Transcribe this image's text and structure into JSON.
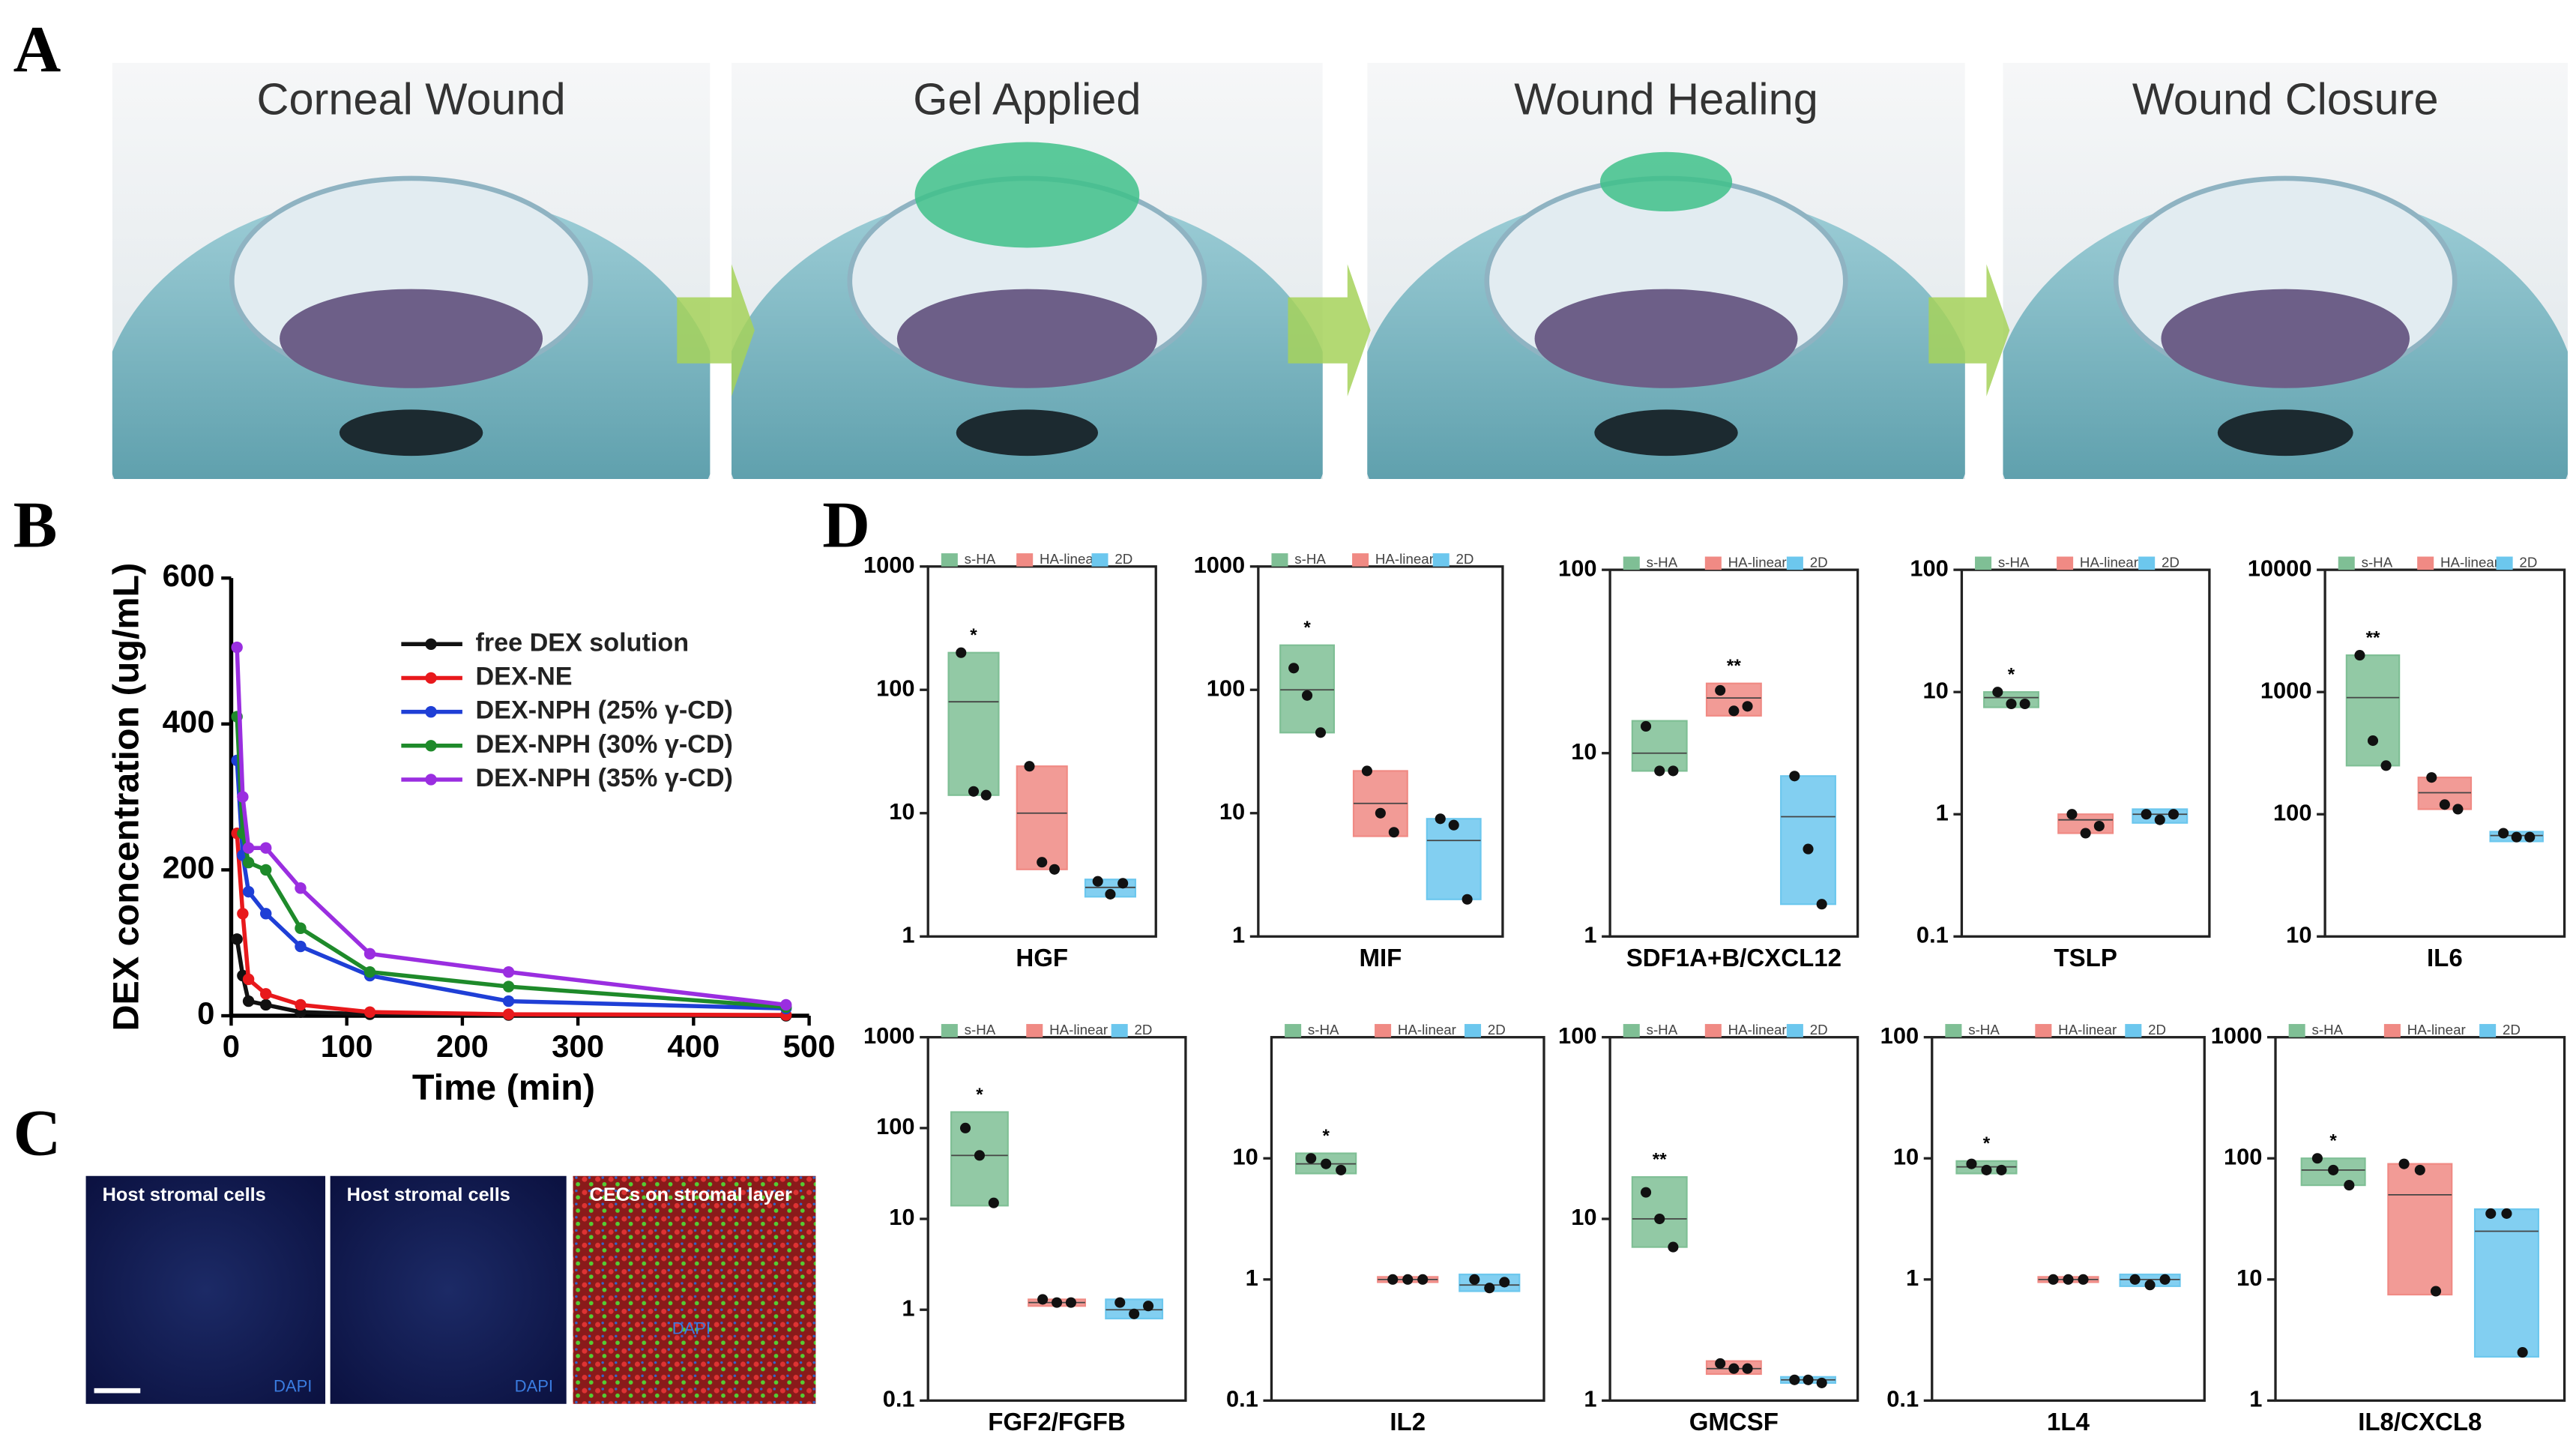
{
  "panel_labels": [
    "A",
    "B",
    "C",
    "D"
  ],
  "panel_a": {
    "steps": [
      "Corneal Wound",
      "Gel Applied",
      "Wound Healing",
      "Wound Closure"
    ]
  },
  "panel_c": {
    "images": [
      {
        "title": "Host stromal cells",
        "stain": "DAPI"
      },
      {
        "title": "Host stromal cells",
        "stain": "DAPI"
      },
      {
        "title": "CECs on stromal layer",
        "stain": "DAPI"
      }
    ]
  },
  "chart_data": [
    {
      "type": "line",
      "xlabel": "Time (min)",
      "ylabel": "DEX concentration (ug/mL)",
      "x": [
        5,
        10,
        15,
        30,
        60,
        120,
        240,
        480
      ],
      "xlim": [
        0,
        500
      ],
      "xticks": [
        0,
        100,
        200,
        300,
        400,
        500
      ],
      "ylim": [
        0,
        600
      ],
      "yticks": [
        0,
        200,
        400,
        600
      ],
      "series": [
        {
          "name": "free DEX solution",
          "color": "#111111",
          "values": [
            105,
            55,
            20,
            15,
            5,
            2,
            1,
            0
          ]
        },
        {
          "name": "DEX-NE",
          "color": "#e8191c",
          "values": [
            250,
            140,
            50,
            30,
            15,
            5,
            2,
            1
          ]
        },
        {
          "name": "DEX-NPH (25% γ-CD)",
          "color": "#1f3fd6",
          "values": [
            350,
            220,
            170,
            140,
            95,
            55,
            20,
            10
          ]
        },
        {
          "name": "DEX-NPH (30% γ-CD)",
          "color": "#1e8a2a",
          "values": [
            410,
            250,
            210,
            200,
            120,
            60,
            40,
            12
          ]
        },
        {
          "name": "DEX-NPH (35% γ-CD)",
          "color": "#9a2ee0",
          "values": [
            505,
            300,
            230,
            230,
            175,
            85,
            60,
            15
          ]
        }
      ]
    },
    {
      "type": "box",
      "title": "HGF",
      "ylim": [
        1,
        1000
      ],
      "yticks": [
        1,
        10,
        100,
        1000
      ],
      "log": true,
      "series": [
        {
          "name": "s-HA",
          "color": "#7fbf95",
          "values": [
            200,
            15,
            14
          ],
          "box": [
            14,
            80,
            200
          ],
          "label": "*"
        },
        {
          "name": "HA-linear",
          "color": "#f08a84",
          "values": [
            24,
            4,
            3.5
          ],
          "box": [
            3.5,
            10,
            24
          ]
        },
        {
          "name": "2D",
          "color": "#6cc7ee",
          "values": [
            2.8,
            2.2,
            2.7
          ],
          "box": [
            2.1,
            2.5,
            2.9
          ]
        }
      ]
    },
    {
      "type": "box",
      "title": "MIF",
      "ylim": [
        1,
        1000
      ],
      "yticks": [
        1,
        10,
        100,
        1000
      ],
      "log": true,
      "series": [
        {
          "name": "s-HA",
          "color": "#7fbf95",
          "values": [
            150,
            90,
            45
          ],
          "box": [
            45,
            100,
            230
          ],
          "label": "*"
        },
        {
          "name": "HA-linear",
          "color": "#f08a84",
          "values": [
            22,
            10,
            7
          ],
          "box": [
            6.5,
            12,
            22
          ]
        },
        {
          "name": "2D",
          "color": "#6cc7ee",
          "values": [
            9,
            8,
            2
          ],
          "box": [
            2,
            6,
            9
          ]
        }
      ]
    },
    {
      "type": "box",
      "title": "SDF1A+B/CXCL12",
      "ylim": [
        1,
        100
      ],
      "yticks": [
        1,
        10,
        100
      ],
      "log": true,
      "series": [
        {
          "name": "s-HA",
          "color": "#7fbf95",
          "values": [
            14,
            8,
            8
          ],
          "box": [
            8,
            10,
            15
          ]
        },
        {
          "name": "HA-linear",
          "color": "#f08a84",
          "values": [
            22,
            17,
            18
          ],
          "box": [
            16,
            20,
            24
          ],
          "label": "**"
        },
        {
          "name": "2D",
          "color": "#6cc7ee",
          "values": [
            7.5,
            3,
            1.5
          ],
          "box": [
            1.5,
            4.5,
            7.5
          ]
        }
      ]
    },
    {
      "type": "box",
      "title": "TSLP",
      "ylim": [
        0.1,
        100
      ],
      "yticks": [
        0.1,
        1,
        10,
        100
      ],
      "log": true,
      "series": [
        {
          "name": "s-HA",
          "color": "#7fbf95",
          "values": [
            10,
            8,
            8
          ],
          "box": [
            7.5,
            9,
            10
          ],
          "label": "*"
        },
        {
          "name": "HA-linear",
          "color": "#f08a84",
          "values": [
            1,
            0.7,
            0.8
          ],
          "box": [
            0.7,
            0.9,
            1
          ]
        },
        {
          "name": "2D",
          "color": "#6cc7ee",
          "values": [
            1,
            0.9,
            1
          ],
          "box": [
            0.85,
            1,
            1.1
          ]
        }
      ]
    },
    {
      "type": "box",
      "title": "IL6",
      "ylim": [
        10,
        10000
      ],
      "yticks": [
        10,
        100,
        1000,
        10000
      ],
      "log": true,
      "series": [
        {
          "name": "s-HA",
          "color": "#7fbf95",
          "values": [
            2000,
            400,
            250
          ],
          "box": [
            250,
            900,
            2000
          ],
          "label": "**"
        },
        {
          "name": "HA-linear",
          "color": "#f08a84",
          "values": [
            200,
            120,
            110
          ],
          "box": [
            110,
            150,
            200
          ]
        },
        {
          "name": "2D",
          "color": "#6cc7ee",
          "values": [
            70,
            65,
            65
          ],
          "box": [
            60,
            67,
            72
          ]
        }
      ]
    },
    {
      "type": "box",
      "title": "FGF2/FGFB",
      "ylim": [
        0.1,
        1000
      ],
      "yticks": [
        0.1,
        1,
        10,
        100,
        1000
      ],
      "log": true,
      "series": [
        {
          "name": "s-HA",
          "color": "#7fbf95",
          "values": [
            100,
            50,
            15
          ],
          "box": [
            14,
            50,
            150
          ],
          "label": "*"
        },
        {
          "name": "HA-linear",
          "color": "#f08a84",
          "values": [
            1.3,
            1.2,
            1.2
          ],
          "box": [
            1.1,
            1.2,
            1.3
          ]
        },
        {
          "name": "2D",
          "color": "#6cc7ee",
          "values": [
            1.2,
            0.9,
            1.1
          ],
          "box": [
            0.8,
            1,
            1.3
          ]
        }
      ]
    },
    {
      "type": "box",
      "title": "IL2",
      "ylim": [
        0.1,
        100
      ],
      "yticks": [
        0.1,
        1,
        10
      ],
      "log": true,
      "series": [
        {
          "name": "s-HA",
          "color": "#7fbf95",
          "values": [
            10,
            9,
            8
          ],
          "box": [
            7.5,
            9,
            11
          ],
          "label": "*"
        },
        {
          "name": "HA-linear",
          "color": "#f08a84",
          "values": [
            1,
            1,
            1
          ],
          "box": [
            0.95,
            1,
            1.05
          ]
        },
        {
          "name": "2D",
          "color": "#6cc7ee",
          "values": [
            1,
            0.85,
            0.95
          ],
          "box": [
            0.8,
            0.9,
            1.1
          ]
        }
      ]
    },
    {
      "type": "box",
      "title": "GMCSF",
      "ylim": [
        1,
        100
      ],
      "yticks": [
        1,
        10,
        100
      ],
      "log": true,
      "series": [
        {
          "name": "s-HA",
          "color": "#7fbf95",
          "values": [
            14,
            10,
            7
          ],
          "box": [
            7,
            10,
            17
          ],
          "label": "**"
        },
        {
          "name": "HA-linear",
          "color": "#f08a84",
          "values": [
            1.6,
            1.5,
            1.5
          ],
          "box": [
            1.4,
            1.5,
            1.65
          ]
        },
        {
          "name": "2D",
          "color": "#6cc7ee",
          "values": [
            1.3,
            1.3,
            1.25
          ],
          "box": [
            1.25,
            1.3,
            1.35
          ]
        }
      ]
    },
    {
      "type": "box",
      "title": "1L4",
      "ylim": [
        0.1,
        100
      ],
      "yticks": [
        0.1,
        1,
        10,
        100
      ],
      "log": true,
      "series": [
        {
          "name": "s-HA",
          "color": "#7fbf95",
          "values": [
            9,
            8,
            8
          ],
          "box": [
            7.5,
            8.5,
            9.5
          ],
          "label": "*"
        },
        {
          "name": "HA-linear",
          "color": "#f08a84",
          "values": [
            1,
            1,
            1
          ],
          "box": [
            0.95,
            1,
            1.05
          ]
        },
        {
          "name": "2D",
          "color": "#6cc7ee",
          "values": [
            1,
            0.9,
            1
          ],
          "box": [
            0.88,
            1,
            1.1
          ]
        }
      ]
    },
    {
      "type": "box",
      "title": "IL8/CXCL8",
      "ylim": [
        1,
        1000
      ],
      "yticks": [
        1,
        10,
        100,
        1000
      ],
      "log": true,
      "series": [
        {
          "name": "s-HA",
          "color": "#7fbf95",
          "values": [
            100,
            80,
            60
          ],
          "box": [
            60,
            80,
            100
          ],
          "label": "*"
        },
        {
          "name": "HA-linear",
          "color": "#f08a84",
          "values": [
            90,
            80,
            8
          ],
          "box": [
            7.5,
            50,
            90
          ]
        },
        {
          "name": "2D",
          "color": "#6cc7ee",
          "values": [
            35,
            35,
            2.5
          ],
          "box": [
            2.3,
            25,
            38
          ]
        }
      ]
    }
  ]
}
